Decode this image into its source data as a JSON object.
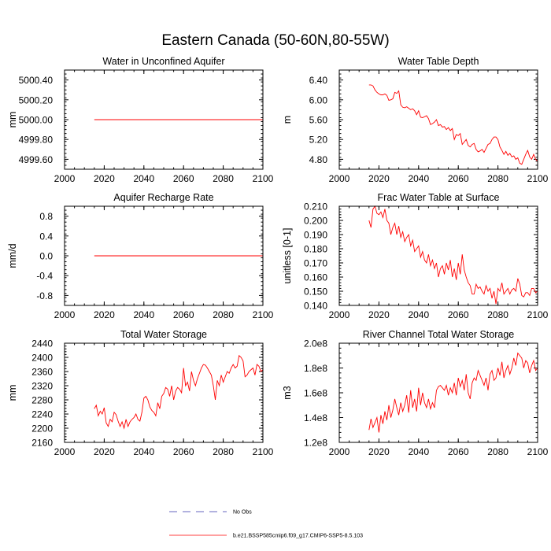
{
  "figure_title": "Eastern Canada (50-60N,80-55W)",
  "legend": [
    {
      "label": "No Obs",
      "color": "#3333aa",
      "dash": true
    },
    {
      "label": "b.e21.BSSP585cmip6.f09_g17.CMIP6-SSP5-8.5.103",
      "color": "#ff0000",
      "dash": false
    }
  ],
  "chart_data": [
    {
      "type": "line",
      "title": "Water in Unconfined Aquifer",
      "ylabel": "mm",
      "xlabel": "",
      "xlim": [
        2000,
        2100
      ],
      "ylim": [
        4999.5,
        5000.5
      ],
      "xticks": [
        2000,
        2020,
        2040,
        2060,
        2080,
        2100
      ],
      "yticks": [
        4999.6,
        4999.8,
        5000.0,
        5000.2,
        5000.4
      ],
      "ytick_labels": [
        "4999.60",
        "4999.80",
        "5000.00",
        "5000.20",
        "5000.40"
      ],
      "series": [
        {
          "name": "b.e21.BSSP585cmip6.f09_g17.CMIP6-SSP5-8.5.103",
          "color": "#ff0000",
          "x": [
            2015,
            2100
          ],
          "y": [
            5000.0,
            5000.0
          ]
        }
      ]
    },
    {
      "type": "line",
      "title": "Water Table Depth",
      "ylabel": "m",
      "xlabel": "",
      "xlim": [
        2000,
        2100
      ],
      "ylim": [
        4.6,
        6.6
      ],
      "xticks": [
        2000,
        2020,
        2040,
        2060,
        2080,
        2100
      ],
      "yticks": [
        4.8,
        5.2,
        5.6,
        6.0,
        6.4
      ],
      "ytick_labels": [
        "4.80",
        "5.20",
        "5.60",
        "6.00",
        "6.40"
      ],
      "series": [
        {
          "name": "b.e21.BSSP585cmip6.f09_g17.CMIP6-SSP5-8.5.103",
          "color": "#ff0000",
          "x": [
            2015,
            2016,
            2017,
            2018,
            2019,
            2020,
            2021,
            2022,
            2023,
            2024,
            2025,
            2026,
            2027,
            2028,
            2029,
            2030,
            2031,
            2032,
            2033,
            2034,
            2035,
            2036,
            2037,
            2038,
            2039,
            2040,
            2041,
            2042,
            2043,
            2044,
            2045,
            2046,
            2047,
            2048,
            2049,
            2050,
            2051,
            2052,
            2053,
            2054,
            2055,
            2056,
            2057,
            2058,
            2059,
            2060,
            2061,
            2062,
            2063,
            2064,
            2065,
            2066,
            2067,
            2068,
            2069,
            2070,
            2071,
            2072,
            2073,
            2074,
            2075,
            2076,
            2077,
            2078,
            2079,
            2080,
            2081,
            2082,
            2083,
            2084,
            2085,
            2086,
            2087,
            2088,
            2089,
            2090,
            2091,
            2092,
            2093,
            2094,
            2095,
            2096,
            2097,
            2098,
            2099,
            2100
          ],
          "y": [
            6.3,
            6.3,
            6.28,
            6.2,
            6.15,
            6.12,
            6.1,
            6.1,
            6.12,
            6.09,
            5.99,
            6.0,
            6.02,
            6.15,
            6.13,
            6.18,
            5.9,
            5.85,
            5.84,
            5.86,
            5.83,
            5.8,
            5.82,
            5.78,
            5.7,
            5.78,
            5.65,
            5.64,
            5.66,
            5.68,
            5.62,
            5.5,
            5.52,
            5.55,
            5.6,
            5.48,
            5.5,
            5.45,
            5.46,
            5.4,
            5.44,
            5.38,
            5.42,
            5.2,
            5.3,
            5.28,
            5.32,
            5.1,
            5.15,
            5.2,
            5.08,
            5.05,
            5.1,
            5.12,
            5.0,
            4.95,
            4.97,
            5.0,
            4.94,
            5.02,
            5.1,
            5.12,
            5.2,
            5.25,
            5.25,
            5.2,
            5.05,
            4.98,
            4.9,
            4.96,
            4.88,
            4.92,
            4.85,
            4.87,
            4.8,
            4.83,
            4.72,
            4.7,
            4.8,
            4.9,
            4.98,
            4.85,
            4.8,
            4.9,
            4.8,
            4.76
          ]
        }
      ]
    },
    {
      "type": "line",
      "title": "Aquifer Recharge Rate",
      "ylabel": "mm/d",
      "xlabel": "",
      "xlim": [
        2000,
        2100
      ],
      "ylim": [
        -1.0,
        1.0
      ],
      "xticks": [
        2000,
        2020,
        2040,
        2060,
        2080,
        2100
      ],
      "yticks": [
        -0.8,
        -0.4,
        0.0,
        0.4,
        0.8
      ],
      "ytick_labels": [
        "-0.8",
        "-0.4",
        "0.0",
        "0.4",
        "0.8"
      ],
      "series": [
        {
          "name": "b.e21.BSSP585cmip6.f09_g17.CMIP6-SSP5-8.5.103",
          "color": "#ff0000",
          "x": [
            2015,
            2100
          ],
          "y": [
            0.0,
            0.0
          ]
        }
      ]
    },
    {
      "type": "line",
      "title": "Frac Water Table at Surface",
      "ylabel": "unitless [0-1]",
      "xlabel": "",
      "xlim": [
        2000,
        2100
      ],
      "ylim": [
        0.14,
        0.21
      ],
      "xticks": [
        2000,
        2020,
        2040,
        2060,
        2080,
        2100
      ],
      "yticks": [
        0.14,
        0.15,
        0.16,
        0.17,
        0.18,
        0.19,
        0.2,
        0.21
      ],
      "ytick_labels": [
        "0.140",
        "0.150",
        "0.160",
        "0.170",
        "0.180",
        "0.190",
        "0.200",
        "0.210"
      ],
      "series": [
        {
          "name": "b.e21.BSSP585cmip6.f09_g17.CMIP6-SSP5-8.5.103",
          "color": "#ff0000",
          "x": [
            2015,
            2016,
            2017,
            2018,
            2019,
            2020,
            2021,
            2022,
            2023,
            2024,
            2025,
            2026,
            2027,
            2028,
            2029,
            2030,
            2031,
            2032,
            2033,
            2034,
            2035,
            2036,
            2037,
            2038,
            2039,
            2040,
            2041,
            2042,
            2043,
            2044,
            2045,
            2046,
            2047,
            2048,
            2049,
            2050,
            2051,
            2052,
            2053,
            2054,
            2055,
            2056,
            2057,
            2058,
            2059,
            2060,
            2061,
            2062,
            2063,
            2064,
            2065,
            2066,
            2067,
            2068,
            2069,
            2070,
            2071,
            2072,
            2073,
            2074,
            2075,
            2076,
            2077,
            2078,
            2079,
            2080,
            2081,
            2082,
            2083,
            2084,
            2085,
            2086,
            2087,
            2088,
            2089,
            2090,
            2091,
            2092,
            2093,
            2094,
            2095,
            2096,
            2097,
            2098,
            2099,
            2100
          ],
          "y": [
            0.2,
            0.195,
            0.208,
            0.21,
            0.205,
            0.204,
            0.206,
            0.202,
            0.208,
            0.2,
            0.198,
            0.19,
            0.195,
            0.198,
            0.19,
            0.196,
            0.188,
            0.192,
            0.185,
            0.188,
            0.19,
            0.182,
            0.186,
            0.178,
            0.18,
            0.182,
            0.174,
            0.178,
            0.172,
            0.17,
            0.176,
            0.168,
            0.172,
            0.166,
            0.17,
            0.16,
            0.166,
            0.168,
            0.162,
            0.17,
            0.165,
            0.172,
            0.16,
            0.166,
            0.158,
            0.17,
            0.162,
            0.176,
            0.165,
            0.16,
            0.156,
            0.154,
            0.148,
            0.148,
            0.155,
            0.152,
            0.153,
            0.15,
            0.148,
            0.154,
            0.15,
            0.152,
            0.145,
            0.15,
            0.141,
            0.152,
            0.15,
            0.156,
            0.148,
            0.15,
            0.152,
            0.148,
            0.151,
            0.152,
            0.15,
            0.159,
            0.155,
            0.147,
            0.146,
            0.149,
            0.149,
            0.147,
            0.152,
            0.152,
            0.149,
            0.15
          ]
        }
      ]
    },
    {
      "type": "line",
      "title": "Total Water Storage",
      "ylabel": "mm",
      "xlabel": "",
      "xlim": [
        2000,
        2100
      ],
      "ylim": [
        2160,
        2440
      ],
      "xticks": [
        2000,
        2020,
        2040,
        2060,
        2080,
        2100
      ],
      "yticks": [
        2160,
        2200,
        2240,
        2280,
        2320,
        2360,
        2400,
        2440
      ],
      "ytick_labels": [
        "2160",
        "2200",
        "2240",
        "2280",
        "2320",
        "2360",
        "2400",
        "2440"
      ],
      "series": [
        {
          "name": "b.e21.BSSP585cmip6.f09_g17.CMIP6-SSP5-8.5.103",
          "color": "#ff0000",
          "x": [
            2015,
            2016,
            2017,
            2018,
            2019,
            2020,
            2021,
            2022,
            2023,
            2024,
            2025,
            2026,
            2027,
            2028,
            2029,
            2030,
            2031,
            2032,
            2033,
            2034,
            2035,
            2036,
            2037,
            2038,
            2039,
            2040,
            2041,
            2042,
            2043,
            2044,
            2045,
            2046,
            2047,
            2048,
            2049,
            2050,
            2051,
            2052,
            2053,
            2054,
            2055,
            2056,
            2057,
            2058,
            2059,
            2060,
            2061,
            2062,
            2063,
            2064,
            2065,
            2066,
            2067,
            2068,
            2069,
            2070,
            2071,
            2072,
            2073,
            2074,
            2075,
            2076,
            2077,
            2078,
            2079,
            2080,
            2081,
            2082,
            2083,
            2084,
            2085,
            2086,
            2087,
            2088,
            2089,
            2090,
            2091,
            2092,
            2093,
            2094,
            2095,
            2096,
            2097,
            2098,
            2099,
            2100
          ],
          "y": [
            2255,
            2265,
            2235,
            2248,
            2240,
            2258,
            2215,
            2205,
            2225,
            2218,
            2245,
            2238,
            2220,
            2205,
            2218,
            2200,
            2225,
            2205,
            2218,
            2225,
            2230,
            2240,
            2225,
            2220,
            2245,
            2285,
            2290,
            2280,
            2260,
            2250,
            2245,
            2235,
            2272,
            2255,
            2290,
            2298,
            2315,
            2310,
            2290,
            2320,
            2280,
            2305,
            2315,
            2310,
            2300,
            2370,
            2320,
            2330,
            2305,
            2360,
            2335,
            2320,
            2340,
            2355,
            2370,
            2380,
            2378,
            2370,
            2360,
            2350,
            2320,
            2280,
            2335,
            2320,
            2350,
            2330,
            2345,
            2360,
            2355,
            2370,
            2380,
            2370,
            2375,
            2405,
            2400,
            2390,
            2345,
            2350,
            2360,
            2365,
            2370,
            2350,
            2380,
            2375,
            2360,
            2365
          ]
        }
      ]
    },
    {
      "type": "line",
      "title": "River Channel Total Water Storage",
      "ylabel": "m3",
      "xlabel": "",
      "xlim": [
        2000,
        2100
      ],
      "ylim": [
        120000000.0,
        200000000.0
      ],
      "xticks": [
        2000,
        2020,
        2040,
        2060,
        2080,
        2100
      ],
      "yticks": [
        120000000.0,
        140000000.0,
        160000000.0,
        180000000.0,
        200000000.0
      ],
      "ytick_labels": [
        "1.2e8",
        "1.4e8",
        "1.6e8",
        "1.8e8",
        "2.0e8"
      ],
      "series": [
        {
          "name": "b.e21.BSSP585cmip6.f09_g17.CMIP6-SSP5-8.5.103",
          "color": "#ff0000",
          "x": [
            2015,
            2016,
            2017,
            2018,
            2019,
            2020,
            2021,
            2022,
            2023,
            2024,
            2025,
            2026,
            2027,
            2028,
            2029,
            2030,
            2031,
            2032,
            2033,
            2034,
            2035,
            2036,
            2037,
            2038,
            2039,
            2040,
            2041,
            2042,
            2043,
            2044,
            2045,
            2046,
            2047,
            2048,
            2049,
            2050,
            2051,
            2052,
            2053,
            2054,
            2055,
            2056,
            2057,
            2058,
            2059,
            2060,
            2061,
            2062,
            2063,
            2064,
            2065,
            2066,
            2067,
            2068,
            2069,
            2070,
            2071,
            2072,
            2073,
            2074,
            2075,
            2076,
            2077,
            2078,
            2079,
            2080,
            2081,
            2082,
            2083,
            2084,
            2085,
            2086,
            2087,
            2088,
            2089,
            2090,
            2091,
            2092,
            2093,
            2094,
            2095,
            2096,
            2097,
            2098,
            2099,
            2100
          ],
          "y": [
            130000000.0,
            139000000.0,
            132000000.0,
            136000000.0,
            140000000.0,
            128000000.0,
            142000000.0,
            135000000.0,
            145000000.0,
            138000000.0,
            150000000.0,
            140000000.0,
            146000000.0,
            155000000.0,
            148000000.0,
            142000000.0,
            152000000.0,
            145000000.0,
            150000000.0,
            158000000.0,
            144000000.0,
            162000000.0,
            148000000.0,
            155000000.0,
            145000000.0,
            164000000.0,
            150000000.0,
            160000000.0,
            152000000.0,
            148000000.0,
            155000000.0,
            147000000.0,
            152000000.0,
            148000000.0,
            162000000.0,
            165000000.0,
            166000000.0,
            164000000.0,
            162000000.0,
            166000000.0,
            158000000.0,
            164000000.0,
            160000000.0,
            168000000.0,
            158000000.0,
            172000000.0,
            165000000.0,
            170000000.0,
            162000000.0,
            175000000.0,
            160000000.0,
            155000000.0,
            168000000.0,
            172000000.0,
            170000000.0,
            178000000.0,
            174000000.0,
            170000000.0,
            166000000.0,
            172000000.0,
            162000000.0,
            175000000.0,
            178000000.0,
            170000000.0,
            172000000.0,
            180000000.0,
            174000000.0,
            185000000.0,
            172000000.0,
            178000000.0,
            182000000.0,
            175000000.0,
            180000000.0,
            188000000.0,
            182000000.0,
            192000000.0,
            190000000.0,
            188000000.0,
            180000000.0,
            186000000.0,
            184000000.0,
            176000000.0,
            182000000.0,
            186000000.0,
            178000000.0,
            180000000.0
          ]
        }
      ]
    }
  ]
}
